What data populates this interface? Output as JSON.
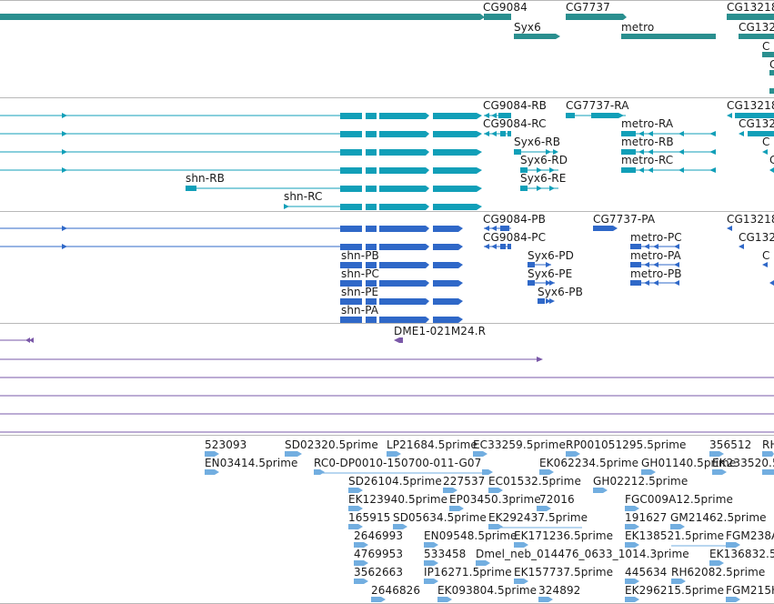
{
  "colors": {
    "gene": "#2a8f8f",
    "transcript_mrna": "#119fb8",
    "transcript_cds": "#2f68c8",
    "alignment": "#7a58a8",
    "est": "#72aee0"
  },
  "tracks": [
    {
      "id": "genes",
      "color": "#2a8f8f",
      "features": [
        {
          "label": "CG9084"
        },
        {
          "label": "CG7737"
        },
        {
          "label": "CG13218"
        },
        {
          "label": "Syx6"
        },
        {
          "label": "metro"
        },
        {
          "label": "CG132"
        },
        {
          "label": "C"
        },
        {
          "label": "C"
        }
      ]
    },
    {
      "id": "transcripts",
      "color": "#119fb8",
      "features": [
        {
          "label": "CG9084-RB"
        },
        {
          "label": "CG7737-RA"
        },
        {
          "label": "CG13218"
        },
        {
          "label": "CG9084-RC"
        },
        {
          "label": "metro-RA"
        },
        {
          "label": "CG132"
        },
        {
          "label": "Syx6-RB"
        },
        {
          "label": "metro-RB"
        },
        {
          "label": "C"
        },
        {
          "label": "Syx6-RD"
        },
        {
          "label": "metro-RC"
        },
        {
          "label": "C"
        },
        {
          "label": "shn-RB"
        },
        {
          "label": "Syx6-RE"
        },
        {
          "label": "shn-RC"
        }
      ]
    },
    {
      "id": "cds",
      "color": "#2f68c8",
      "features": [
        {
          "label": "CG9084-PB"
        },
        {
          "label": "CG7737-PA"
        },
        {
          "label": "CG13218"
        },
        {
          "label": "CG9084-PC"
        },
        {
          "label": "metro-PC"
        },
        {
          "label": "CG132"
        },
        {
          "label": "shn-PB"
        },
        {
          "label": "Syx6-PD"
        },
        {
          "label": "metro-PA"
        },
        {
          "label": "C"
        },
        {
          "label": "shn-PC"
        },
        {
          "label": "Syx6-PE"
        },
        {
          "label": "metro-PB"
        },
        {
          "label": "shn-PE"
        },
        {
          "label": "Syx6-PB"
        },
        {
          "label": "shn-PA"
        }
      ]
    },
    {
      "id": "alignments",
      "color": "#7a58a8",
      "features": [
        {
          "label": "DME1-021M24.R"
        }
      ]
    },
    {
      "id": "ests",
      "color": "#72aee0",
      "features": [
        {
          "label": "523093"
        },
        {
          "label": "SD02320.5prime"
        },
        {
          "label": "LP21684.5prime"
        },
        {
          "label": "EC33259.5prime"
        },
        {
          "label": "RP001051295.5prime"
        },
        {
          "label": "356512"
        },
        {
          "label": "RH"
        },
        {
          "label": "EN03414.5prime"
        },
        {
          "label": "RC0-DP0010-150700-011-G07"
        },
        {
          "label": "EK062234.5prime"
        },
        {
          "label": "GH01140.5prime"
        },
        {
          "label": "EK233520.5"
        },
        {
          "label": "SD26104.5prime"
        },
        {
          "label": "227537"
        },
        {
          "label": "EC01532.5prime"
        },
        {
          "label": "GH02212.5prime"
        },
        {
          "label": "EK123940.5prime"
        },
        {
          "label": "EP03450.3prime"
        },
        {
          "label": "72016"
        },
        {
          "label": "FGC009A12.5prime"
        },
        {
          "label": "165915"
        },
        {
          "label": "SD05634.5prime"
        },
        {
          "label": "EK292437.5prime"
        },
        {
          "label": "191627"
        },
        {
          "label": "GM21462.5prime"
        },
        {
          "label": "2646993"
        },
        {
          "label": "EN09548.5prime"
        },
        {
          "label": "EK171236.5prime"
        },
        {
          "label": "EK138521.5prime"
        },
        {
          "label": "FGM238A"
        },
        {
          "label": "4769953"
        },
        {
          "label": "533458"
        },
        {
          "label": "Dmel_neb_014476_0633_1014.3prime"
        },
        {
          "label": "EK136832.5"
        },
        {
          "label": "3562663"
        },
        {
          "label": "IP16271.5prime"
        },
        {
          "label": "EK157737.5prime"
        },
        {
          "label": "445634"
        },
        {
          "label": "RH62082.5prime"
        },
        {
          "label": "2646826"
        },
        {
          "label": "EK093804.5prime"
        },
        {
          "label": "324892"
        },
        {
          "label": "EK296215.5prime"
        },
        {
          "label": "FGM215H"
        }
      ]
    }
  ]
}
